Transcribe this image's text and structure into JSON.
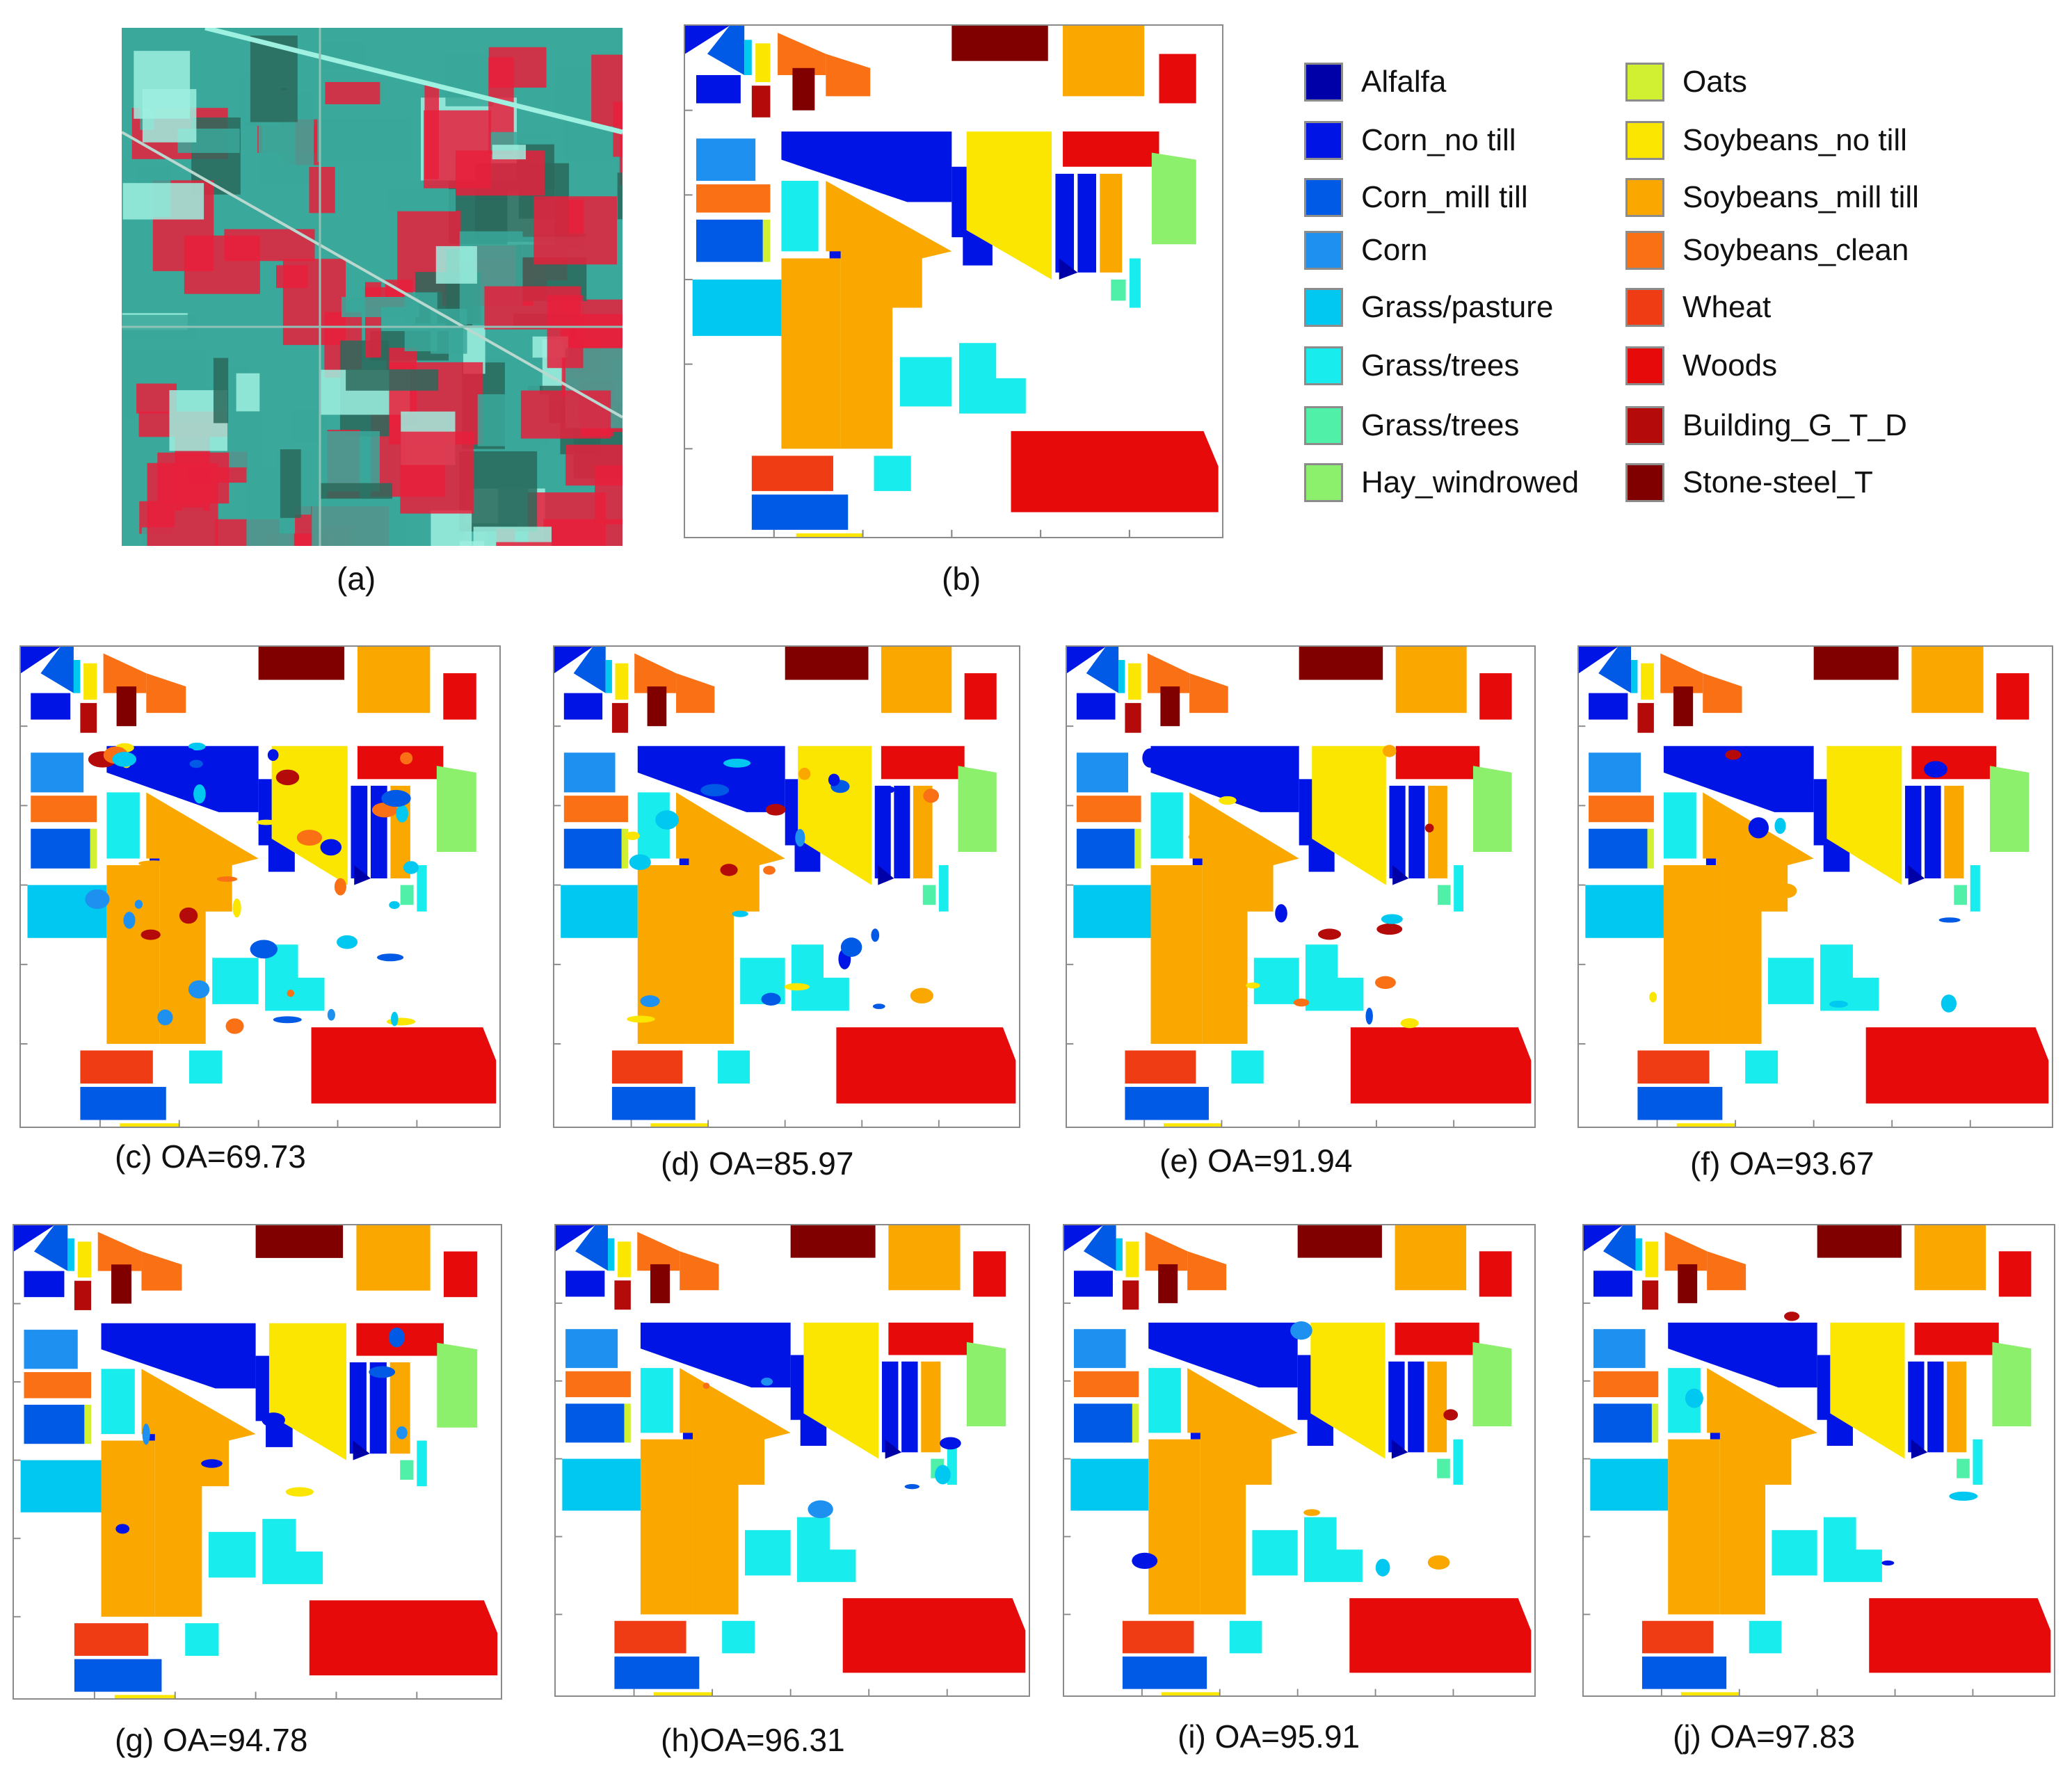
{
  "figure": {
    "panels": [
      {
        "id": "a",
        "caption": "(a)",
        "kind": "false-color-composite"
      },
      {
        "id": "b",
        "caption": "(b)",
        "kind": "ground-truth"
      },
      {
        "id": "c",
        "caption": "(c) OA=69.73",
        "oa": 69.73
      },
      {
        "id": "d",
        "caption": "(d) OA=85.97",
        "oa": 85.97
      },
      {
        "id": "e",
        "caption": "(e) OA=91.94",
        "oa": 91.94
      },
      {
        "id": "f",
        "caption": "(f) OA=93.67",
        "oa": 93.67
      },
      {
        "id": "g",
        "caption": "(g) OA=94.78",
        "oa": 94.78
      },
      {
        "id": "h",
        "caption": "(h)OA=96.31",
        "oa": 96.31
      },
      {
        "id": "i",
        "caption": "(i) OA=95.91",
        "oa": 95.91
      },
      {
        "id": "j",
        "caption": "(j) OA=97.83",
        "oa": 97.83
      }
    ]
  },
  "legend": {
    "items": [
      {
        "label": "Alfalfa",
        "color": "#0000a8"
      },
      {
        "label": "Corn_no till",
        "color": "#0014e6"
      },
      {
        "label": "Corn_mill till",
        "color": "#005ae6"
      },
      {
        "label": "Corn",
        "color": "#1e90f0"
      },
      {
        "label": "Grass/pasture",
        "color": "#00c8f0"
      },
      {
        "label": "Grass/trees",
        "color": "#19ecec"
      },
      {
        "label": "Grass/trees",
        "color": "#50f0a8"
      },
      {
        "label": "Hay_windrowed",
        "color": "#8cf06c"
      },
      {
        "label": "Oats",
        "color": "#d2f032"
      },
      {
        "label": "Soybeans_no till",
        "color": "#fae600"
      },
      {
        "label": "Soybeans_mill till",
        "color": "#faa800"
      },
      {
        "label": "Soybeans_clean",
        "color": "#fa7014"
      },
      {
        "label": "Wheat",
        "color": "#f03c14"
      },
      {
        "label": "Woods",
        "color": "#e60a0a"
      },
      {
        "label": "Building_G_T_D",
        "color": "#b40a0a"
      },
      {
        "label": "Stone-steel_T",
        "color": "#800000"
      }
    ]
  },
  "composite_colors": {
    "vegetation": "#e8203c",
    "soil": "#3aa89a",
    "bright": "#9ef0e0",
    "dark": "#2c6a5c"
  }
}
